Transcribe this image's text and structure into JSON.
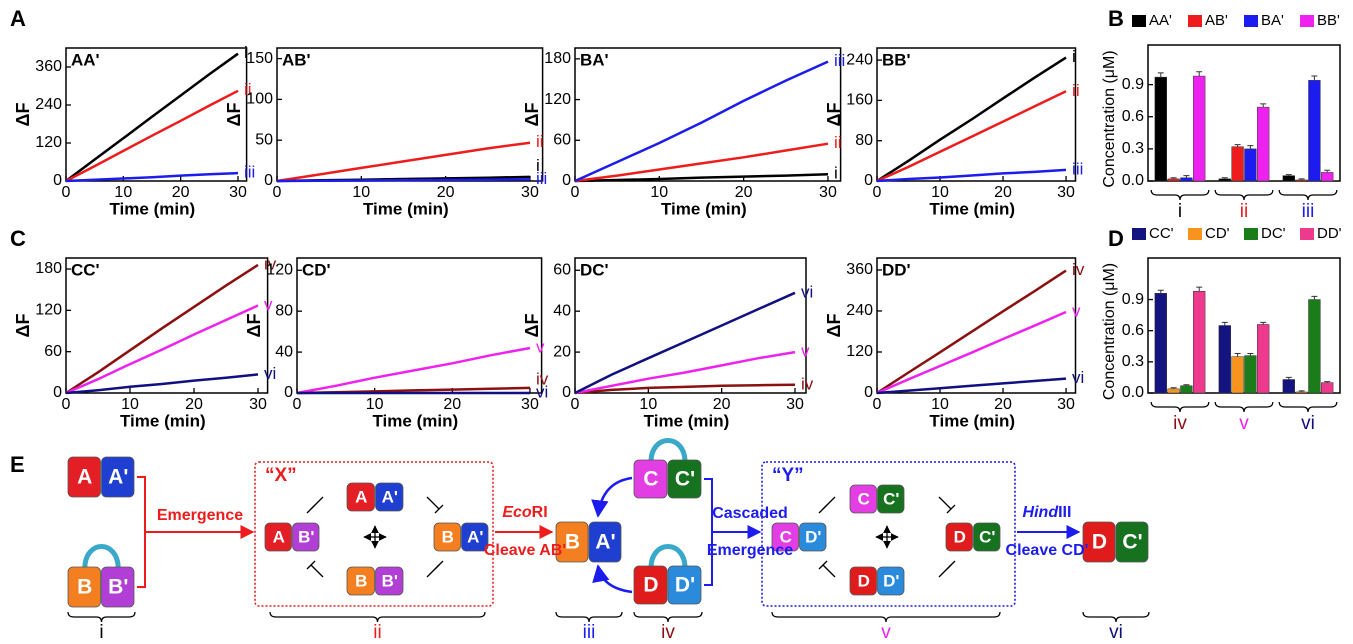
{
  "panel_labels": [
    "A",
    "B",
    "C",
    "D",
    "E"
  ],
  "chart_data": [
    {
      "type": "line",
      "title": "AA'",
      "x_label": "Time (min)",
      "y_label": "ΔF",
      "x": [
        0,
        5,
        10,
        15,
        20,
        25,
        30
      ],
      "xlim": [
        0,
        31.5
      ],
      "xticks": [
        0,
        10,
        20,
        30
      ],
      "ylim": [
        0,
        420
      ],
      "yticks": [
        0,
        120,
        240,
        360
      ],
      "series": [
        {
          "name": "i",
          "color": "#000000",
          "values": [
            0,
            68,
            135,
            203,
            270,
            337,
            402
          ]
        },
        {
          "name": "ii",
          "color": "#ee1c1c",
          "values": [
            0,
            47,
            95,
            143,
            190,
            238,
            285
          ]
        },
        {
          "name": "iii",
          "color": "#1c1cee",
          "values": [
            0,
            4,
            8,
            12,
            17,
            21,
            25
          ]
        }
      ]
    },
    {
      "type": "line",
      "title": "AB'",
      "x_label": "Time (min)",
      "y_label": "ΔF",
      "x": [
        0,
        5,
        10,
        15,
        20,
        25,
        30
      ],
      "xlim": [
        0,
        31.5
      ],
      "xticks": [
        0,
        10,
        20,
        30
      ],
      "ylim": [
        0,
        163
      ],
      "yticks": [
        0,
        50,
        100,
        150
      ],
      "series": [
        {
          "name": "i",
          "color": "#000000",
          "values": [
            0,
            0.8,
            1.6,
            2.4,
            3.2,
            4,
            5
          ]
        },
        {
          "name": "ii",
          "color": "#ee1c1c",
          "values": [
            0,
            8,
            16,
            24,
            32,
            40,
            47
          ]
        },
        {
          "name": "iii",
          "color": "#1c1cee",
          "values": [
            0,
            0.3,
            0.6,
            1,
            1.3,
            1.6,
            2
          ]
        }
      ]
    },
    {
      "type": "line",
      "title": "BA'",
      "x_label": "Time (min)",
      "y_label": "ΔF",
      "x": [
        0,
        5,
        10,
        15,
        20,
        25,
        30
      ],
      "xlim": [
        0,
        31.5
      ],
      "xticks": [
        0,
        10,
        20,
        30
      ],
      "ylim": [
        0,
        196
      ],
      "yticks": [
        0,
        60,
        120,
        180
      ],
      "series": [
        {
          "name": "i",
          "color": "#000000",
          "values": [
            0,
            1.5,
            3,
            5,
            6.5,
            8,
            10
          ]
        },
        {
          "name": "ii",
          "color": "#ee1c1c",
          "values": [
            0,
            8,
            17,
            26,
            35,
            45,
            55
          ]
        },
        {
          "name": "iii",
          "color": "#1c1cee",
          "values": [
            0,
            28,
            56,
            86,
            118,
            148,
            176
          ]
        }
      ]
    },
    {
      "type": "line",
      "title": "BB'",
      "x_label": "Time (min)",
      "y_label": "ΔF",
      "x": [
        0,
        5,
        10,
        15,
        20,
        25,
        30
      ],
      "xlim": [
        0,
        31.5
      ],
      "xticks": [
        0,
        10,
        20,
        30
      ],
      "ylim": [
        0,
        264
      ],
      "yticks": [
        0,
        80,
        160,
        240
      ],
      "series": [
        {
          "name": "i",
          "color": "#000000",
          "values": [
            0,
            40,
            82,
            122,
            164,
            205,
            245
          ]
        },
        {
          "name": "ii",
          "color": "#ee1c1c",
          "values": [
            0,
            28,
            58,
            88,
            118,
            148,
            178
          ]
        },
        {
          "name": "iii",
          "color": "#1c1cee",
          "values": [
            0,
            4,
            7,
            11,
            15,
            18,
            22
          ]
        }
      ]
    },
    {
      "type": "line",
      "title": "CC'",
      "x_label": "Time (min)",
      "y_label": "ΔF",
      "x": [
        0,
        5,
        10,
        15,
        20,
        25,
        30
      ],
      "xlim": [
        0,
        31.5
      ],
      "xticks": [
        0,
        10,
        20,
        30
      ],
      "ylim": [
        0,
        196
      ],
      "yticks": [
        0,
        60,
        120,
        180
      ],
      "series": [
        {
          "name": "iv",
          "color": "#8b1010",
          "values": [
            0,
            30,
            62,
            94,
            125,
            156,
            186
          ]
        },
        {
          "name": "v",
          "color": "#ee22ee",
          "values": [
            0,
            20,
            42,
            63,
            85,
            106,
            127
          ]
        },
        {
          "name": "vi",
          "color": "#101080",
          "values": [
            0,
            4,
            9,
            13,
            18,
            22,
            27
          ]
        }
      ]
    },
    {
      "type": "line",
      "title": "CD'",
      "x_label": "Time (min)",
      "y_label": "ΔF",
      "x": [
        0,
        5,
        10,
        15,
        20,
        25,
        30
      ],
      "xlim": [
        0,
        31.5
      ],
      "xticks": [
        0,
        10,
        20,
        30
      ],
      "ylim": [
        0,
        132
      ],
      "yticks": [
        0,
        40,
        80,
        120
      ],
      "series": [
        {
          "name": "iv",
          "color": "#8b1010",
          "values": [
            0,
            0.8,
            1.6,
            2.5,
            3.3,
            4.1,
            5
          ]
        },
        {
          "name": "v",
          "color": "#ee22ee",
          "values": [
            0,
            7,
            15,
            22,
            29,
            37,
            44
          ]
        },
        {
          "name": "vi",
          "color": "#101080",
          "values": [
            0,
            0,
            0,
            0,
            0,
            0,
            0
          ]
        }
      ]
    },
    {
      "type": "line",
      "title": "DC'",
      "x_label": "Time (min)",
      "y_label": "ΔF",
      "x": [
        0,
        5,
        10,
        15,
        20,
        25,
        30
      ],
      "xlim": [
        0,
        31.5
      ],
      "xticks": [
        0,
        10,
        20,
        30
      ],
      "ylim": [
        0,
        66
      ],
      "yticks": [
        0,
        20,
        40,
        60
      ],
      "series": [
        {
          "name": "iv",
          "color": "#8b1010",
          "values": [
            0,
            1.5,
            2.5,
            3,
            3.5,
            3.8,
            4
          ]
        },
        {
          "name": "v",
          "color": "#ee22ee",
          "values": [
            0,
            3.5,
            7,
            10,
            13.5,
            17,
            20
          ]
        },
        {
          "name": "vi",
          "color": "#101080",
          "values": [
            0,
            9,
            17,
            25,
            33,
            41,
            49
          ]
        }
      ]
    },
    {
      "type": "line",
      "title": "DD'",
      "x_label": "Time (min)",
      "y_label": "ΔF",
      "x": [
        0,
        5,
        10,
        15,
        20,
        25,
        30
      ],
      "xlim": [
        0,
        31.5
      ],
      "xticks": [
        0,
        10,
        20,
        30
      ],
      "ylim": [
        0,
        395
      ],
      "yticks": [
        0,
        120,
        240,
        360
      ],
      "series": [
        {
          "name": "iv",
          "color": "#8b1010",
          "values": [
            0,
            60,
            119,
            179,
            239,
            298,
            358
          ]
        },
        {
          "name": "v",
          "color": "#ee22ee",
          "values": [
            0,
            40,
            79,
            118,
            158,
            197,
            237
          ]
        },
        {
          "name": "vi",
          "color": "#101080",
          "values": [
            0,
            7,
            14,
            21,
            28,
            35,
            42
          ]
        }
      ]
    },
    {
      "type": "bar",
      "y_label": "Concentration (μM)",
      "categories": [
        "i",
        "ii",
        "iii"
      ],
      "category_colors": [
        "#000000",
        "#ee1c1c",
        "#1c1cee"
      ],
      "ylim": [
        0,
        1.27
      ],
      "yticks": [
        {
          "value": 0,
          "label": "0.0"
        },
        {
          "value": 0.3,
          "label": "0.3"
        },
        {
          "value": 0.6,
          "label": "0.6"
        },
        {
          "value": 0.9,
          "label": "0.9"
        }
      ],
      "series": [
        {
          "name": "AA'",
          "color": "#000000",
          "values": [
            0.97,
            0.02,
            0.05
          ],
          "errors": [
            0.04,
            0.01,
            0.01
          ]
        },
        {
          "name": "AB'",
          "color": "#ee1c1c",
          "values": [
            0.02,
            0.32,
            0.01
          ],
          "errors": [
            0.01,
            0.02,
            0.01
          ]
        },
        {
          "name": "BA'",
          "color": "#1c1cee",
          "values": [
            0.03,
            0.3,
            0.94
          ],
          "errors": [
            0.02,
            0.03,
            0.04
          ]
        },
        {
          "name": "BB'",
          "color": "#ee22ee",
          "values": [
            0.98,
            0.69,
            0.08
          ],
          "errors": [
            0.04,
            0.03,
            0.02
          ]
        }
      ]
    },
    {
      "type": "bar",
      "y_label": "Concentration (μM)",
      "categories": [
        "iv",
        "v",
        "vi"
      ],
      "category_colors": [
        "#8b1010",
        "#ee22ee",
        "#101080"
      ],
      "ylim": [
        0,
        1.3
      ],
      "yticks": [
        {
          "value": 0,
          "label": "0.0"
        },
        {
          "value": 0.3,
          "label": "0.3"
        },
        {
          "value": 0.6,
          "label": "0.6"
        },
        {
          "value": 0.9,
          "label": "0.9"
        }
      ],
      "series": [
        {
          "name": "CC'",
          "color": "#141480",
          "values": [
            0.96,
            0.65,
            0.13
          ],
          "errors": [
            0.03,
            0.03,
            0.02
          ]
        },
        {
          "name": "CD'",
          "color": "#f7941d",
          "values": [
            0.04,
            0.35,
            0.01
          ],
          "errors": [
            0.01,
            0.03,
            0.01
          ]
        },
        {
          "name": "DC'",
          "color": "#1a7d1a",
          "values": [
            0.07,
            0.36,
            0.9
          ],
          "errors": [
            0.01,
            0.02,
            0.03
          ]
        },
        {
          "name": "DD'",
          "color": "#ee3a8c",
          "values": [
            0.98,
            0.66,
            0.1
          ],
          "errors": [
            0.04,
            0.02,
            0.01
          ]
        }
      ]
    }
  ],
  "diagram": {
    "blocks": [
      {
        "parts": [
          "A",
          "A'"
        ],
        "colors": [
          "#e31e24",
          "#1f3fd1"
        ]
      },
      {
        "parts": [
          "B",
          "B'"
        ],
        "colors": [
          "#f47f20",
          "#b13fd6"
        ]
      },
      {
        "parts": [
          "A",
          "A'"
        ],
        "colors": [
          "#e31e24",
          "#1f3fd1"
        ]
      },
      {
        "parts": [
          "A",
          "B'"
        ],
        "colors": [
          "#e31e24",
          "#b13fd6"
        ]
      },
      {
        "parts": [
          "B",
          "A'"
        ],
        "colors": [
          "#f47f20",
          "#1f3fd1"
        ]
      },
      {
        "parts": [
          "B",
          "B'"
        ],
        "colors": [
          "#f47f20",
          "#b13fd6"
        ]
      },
      {
        "parts": [
          "B",
          "A'"
        ],
        "colors": [
          "#f47f20",
          "#1f3fd1"
        ]
      },
      {
        "parts": [
          "C",
          "C'"
        ],
        "colors": [
          "#e23ee3",
          "#16721f"
        ]
      },
      {
        "parts": [
          "D",
          "D'"
        ],
        "colors": [
          "#e01b1b",
          "#2a8bdc"
        ]
      },
      {
        "parts": [
          "C",
          "C'"
        ],
        "colors": [
          "#e23ee3",
          "#16721f"
        ]
      },
      {
        "parts": [
          "C",
          "D'"
        ],
        "colors": [
          "#e23ee3",
          "#2a8bdc"
        ]
      },
      {
        "parts": [
          "D",
          "C'"
        ],
        "colors": [
          "#e01b1b",
          "#16721f"
        ]
      },
      {
        "parts": [
          "D",
          "D'"
        ],
        "colors": [
          "#e01b1b",
          "#2a8bdc"
        ]
      },
      {
        "parts": [
          "D",
          "C'"
        ],
        "colors": [
          "#e01b1b",
          "#16721f"
        ]
      }
    ],
    "x_group": "“X”",
    "y_group": "“Y”",
    "step_1": "Emergence",
    "step_2_enzyme_italic": "Eco",
    "step_2_enzyme": "RI",
    "step_2_action": "Cleave AB'",
    "step_3_line_1": "Cascaded",
    "step_3_line_2": "Emergence",
    "step_4_enzyme_italic": "Hind",
    "step_4_enzyme": "III",
    "step_4_action": "Cleave CD'",
    "stages": [
      "i",
      "ii",
      "iii",
      "iv",
      "v",
      "vi"
    ],
    "stage_colors": [
      "#000000",
      "#ee1c1c",
      "#1c1cee",
      "#8b1010",
      "#ee22ee",
      "#101080"
    ]
  }
}
